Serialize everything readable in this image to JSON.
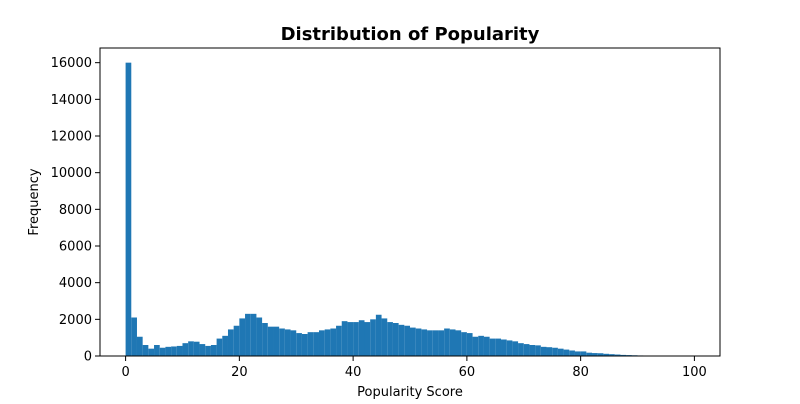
{
  "chart_data": {
    "type": "bar",
    "title": "Distribution of Popularity",
    "xlabel": "Popularity Score",
    "ylabel": "Frequency",
    "xlim": [
      -4.5,
      104.5
    ],
    "ylim": [
      0,
      16800
    ],
    "x_ticks": [
      0,
      20,
      40,
      60,
      80,
      100
    ],
    "y_ticks": [
      0,
      2000,
      4000,
      6000,
      8000,
      10000,
      12000,
      14000,
      16000
    ],
    "bin_edges": [
      0,
      1,
      2,
      3,
      4,
      5,
      6,
      7,
      8,
      9,
      10,
      11,
      12,
      13,
      14,
      15,
      16,
      17,
      18,
      19,
      20,
      21,
      22,
      23,
      24,
      25,
      26,
      27,
      28,
      29,
      30,
      31,
      32,
      33,
      34,
      35,
      36,
      37,
      38,
      39,
      40,
      41,
      42,
      43,
      44,
      45,
      46,
      47,
      48,
      49,
      50,
      51,
      52,
      53,
      54,
      55,
      56,
      57,
      58,
      59,
      60,
      61,
      62,
      63,
      64,
      65,
      66,
      67,
      68,
      69,
      70,
      71,
      72,
      73,
      74,
      75,
      76,
      77,
      78,
      79,
      80,
      81,
      82,
      83,
      84,
      85,
      86,
      87,
      88,
      89,
      90,
      91,
      92,
      93,
      94,
      95,
      96,
      97,
      98,
      99,
      100
    ],
    "values": [
      16000,
      2100,
      1050,
      600,
      400,
      600,
      450,
      500,
      520,
      550,
      700,
      800,
      780,
      650,
      550,
      600,
      950,
      1100,
      1450,
      1650,
      2050,
      2300,
      2300,
      2100,
      1800,
      1600,
      1600,
      1500,
      1450,
      1400,
      1250,
      1200,
      1300,
      1300,
      1400,
      1450,
      1500,
      1650,
      1900,
      1850,
      1850,
      1950,
      1850,
      2000,
      2250,
      2050,
      1850,
      1800,
      1700,
      1650,
      1550,
      1500,
      1450,
      1400,
      1400,
      1400,
      1500,
      1450,
      1400,
      1300,
      1250,
      1050,
      1100,
      1050,
      950,
      950,
      900,
      850,
      800,
      700,
      650,
      600,
      580,
      500,
      480,
      450,
      400,
      350,
      300,
      250,
      250,
      180,
      160,
      150,
      120,
      100,
      80,
      60,
      50,
      40,
      30,
      20,
      15,
      10,
      8,
      6,
      5,
      4,
      3,
      2
    ],
    "bar_color": "#1f77b4",
    "grid": false,
    "legend": null
  }
}
